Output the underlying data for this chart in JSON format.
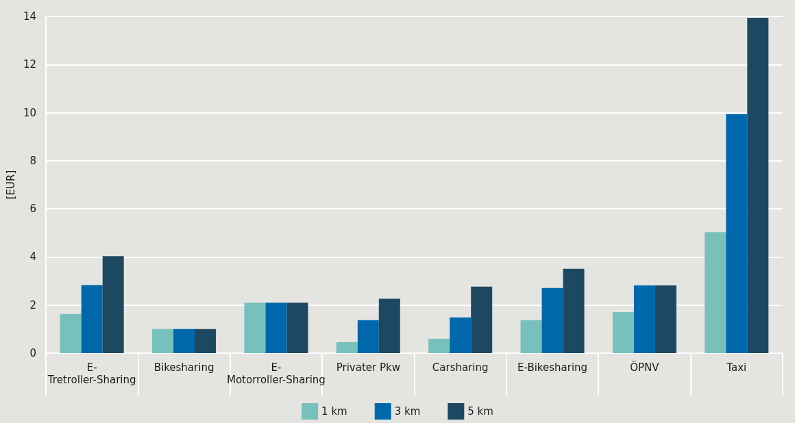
{
  "chart_data": {
    "type": "bar",
    "ylabel": "[EUR]",
    "categories": [
      "E-Tretroller-Sharing",
      "Bikesharing",
      "E-Motorroller-Sharing",
      "Privater Pkw",
      "Carsharing",
      "E-Bikesharing",
      "ÖPNV",
      "Taxi"
    ],
    "series": [
      {
        "name": "1 km",
        "color": "#78c0bb",
        "values": [
          1.63,
          1.0,
          2.1,
          0.46,
          0.6,
          1.37,
          1.71,
          5.03
        ]
      },
      {
        "name": "3 km",
        "color": "#0068aa",
        "values": [
          2.83,
          1.0,
          2.1,
          1.37,
          1.49,
          2.71,
          2.82,
          9.94
        ]
      },
      {
        "name": "5 km",
        "color": "#1e4861",
        "values": [
          4.03,
          1.0,
          2.1,
          2.26,
          2.77,
          3.51,
          2.82,
          13.94
        ]
      }
    ],
    "ylim": [
      0,
      14
    ],
    "yticks": [
      0,
      2,
      4,
      6,
      8,
      10,
      12,
      14
    ],
    "grid": "y",
    "legend": "bottom"
  }
}
